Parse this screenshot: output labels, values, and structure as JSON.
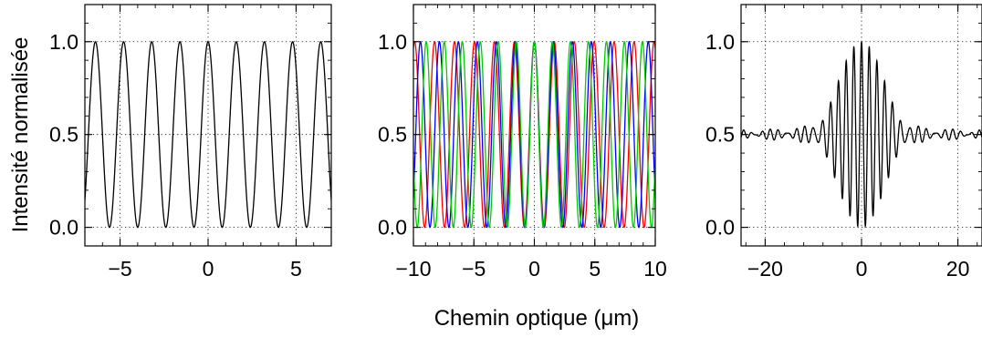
{
  "figure": {
    "ylabel": "Intensité normalisée",
    "xlabel": "Chemin optique (μm)"
  },
  "chart_data": [
    {
      "type": "line",
      "title": "",
      "xlabel": "",
      "ylabel": "Intensité normalisée",
      "xlim": [
        -7,
        7
      ],
      "ylim": [
        -0.1,
        1.2
      ],
      "xticks": [
        -5,
        0,
        5
      ],
      "yticks": [
        0.0,
        0.5,
        1.0
      ],
      "xtick_labels": [
        "−5",
        "0",
        "5"
      ],
      "ytick_labels": [
        "0.0",
        "0.5",
        "1.0"
      ],
      "grid": true,
      "series": [
        {
          "color": "#000000",
          "function": "0.5*(1+cos(2*pi*x/period))",
          "period_um": 1.6,
          "x": [
            -6.4,
            -5.6,
            -4.8,
            -4.0,
            -3.2,
            -2.4,
            -1.6,
            -0.8,
            0,
            0.8,
            1.6,
            2.4,
            3.2,
            4.0,
            4.8,
            5.6,
            6.4
          ],
          "y": [
            1,
            0,
            1,
            0,
            1,
            0,
            1,
            0,
            1,
            0,
            1,
            0,
            1,
            0,
            1,
            0,
            1
          ]
        }
      ]
    },
    {
      "type": "line",
      "title": "",
      "xlabel": "",
      "ylabel": "",
      "xlim": [
        -10,
        10
      ],
      "ylim": [
        -0.1,
        1.2
      ],
      "xticks": [
        -10,
        -5,
        0,
        5,
        10
      ],
      "yticks": [
        0.0,
        0.5,
        1.0
      ],
      "xtick_labels": [
        "−10",
        "−5",
        "0",
        "5",
        "10"
      ],
      "ytick_labels": [
        "0.0",
        "0.5",
        "1.0"
      ],
      "grid": true,
      "series": [
        {
          "color": "#ff0000",
          "function": "0.5*(1+cos(2*pi*x/period))",
          "period_um": 1.65
        },
        {
          "color": "#0000ff",
          "function": "0.5*(1+cos(2*pi*x/period))",
          "period_um": 1.57
        },
        {
          "color": "#00cc00",
          "function": "0.5*(1+cos(2*pi*x/period))",
          "period_um": 1.49
        }
      ]
    },
    {
      "type": "line",
      "title": "",
      "xlabel": "",
      "ylabel": "",
      "xlim": [
        -25,
        25
      ],
      "ylim": [
        -0.1,
        1.2
      ],
      "xticks": [
        -20,
        0,
        20
      ],
      "yticks": [
        0.0,
        0.5,
        1.0
      ],
      "xtick_labels": [
        "−20",
        "0",
        "20"
      ],
      "ytick_labels": [
        "0.0",
        "0.5",
        "1.0"
      ],
      "grid": true,
      "series": [
        {
          "color": "#000000",
          "function": "0.5+0.5*sinc-weighted sum of cosines (white-light fringes)",
          "x": [
            -24,
            -12,
            -4,
            -1.6,
            0,
            1.6,
            4,
            12,
            24
          ],
          "y": [
            0.5,
            0.6,
            0.75,
            0.0,
            1.0,
            0.0,
            0.75,
            0.6,
            0.5
          ]
        }
      ]
    }
  ]
}
